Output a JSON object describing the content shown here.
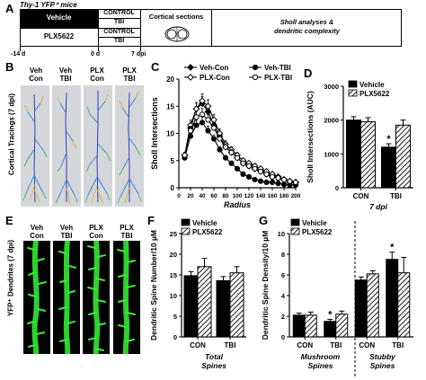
{
  "panel_letters": [
    "A",
    "B",
    "C",
    "D",
    "E",
    "F",
    "G"
  ],
  "panel_a": {
    "mice_label": "Thy-1 YFP⁺ mice",
    "group_vehicle": "Vehicle",
    "group_plx": "PLX5622",
    "cond_control": "CONTROL",
    "cond_tbi": "TBI",
    "step_cortical": "Cortical sections",
    "step_sholl_1": "Sholl analyses &",
    "step_sholl_2": "dendritic complexity",
    "timeline_labels": [
      "-14 d",
      "0 d",
      "7 dpi"
    ],
    "brain_icon": "brain-sections-icon"
  },
  "panel_b": {
    "side_label": "Cortical Tracings (7 dpi)",
    "columns": [
      {
        "line1": "Veh",
        "line2": "Con"
      },
      {
        "line1": "Veh",
        "line2": "TBI"
      },
      {
        "line1": "PLX",
        "line2": "Con"
      },
      {
        "line1": "PLX",
        "line2": "TBI"
      }
    ]
  },
  "panel_e": {
    "side_label": "YFP⁺ Dendrites (7 dpi)",
    "columns": [
      {
        "line1": "Veh",
        "line2": "Con"
      },
      {
        "line1": "Veh",
        "line2": "TBI"
      },
      {
        "line1": "PLX",
        "line2": "Con"
      },
      {
        "line1": "PLX",
        "line2": "TBI"
      }
    ]
  },
  "chart_data": [
    {
      "id": "C",
      "type": "line",
      "xlabel": "Radius",
      "ylabel": "Sholl Intersections",
      "xlim": [
        0,
        200
      ],
      "ylim": [
        0,
        20
      ],
      "xticks": [
        0,
        20,
        40,
        60,
        80,
        100,
        120,
        140,
        160,
        180,
        200
      ],
      "yticks": [
        0,
        5,
        10,
        15,
        20
      ],
      "legend": "top",
      "x": [
        10,
        20,
        30,
        40,
        50,
        60,
        70,
        80,
        90,
        100,
        110,
        120,
        130,
        140,
        150,
        160,
        170,
        180,
        190,
        200
      ],
      "series": [
        {
          "name": "Veh-Con",
          "marker": "filled-diamond",
          "values": [
            6,
            11,
            14.5,
            15.5,
            14,
            11.5,
            9.5,
            7.5,
            6.5,
            5.5,
            4.5,
            4,
            3.5,
            3,
            2.5,
            2,
            2,
            1.5,
            1,
            1
          ]
        },
        {
          "name": "Veh-TBI",
          "marker": "filled-circle",
          "values": [
            5.5,
            9.5,
            11.5,
            12,
            10.5,
            9,
            7,
            5.5,
            4.5,
            3.5,
            2.5,
            2,
            1.5,
            1.2,
            1,
            1,
            0.8,
            0.6,
            0.5,
            0.5
          ]
        },
        {
          "name": "PLX-Con",
          "marker": "open-diamond",
          "values": [
            6,
            11.5,
            14.5,
            16,
            15,
            12.5,
            10,
            8,
            7,
            6,
            5,
            4.5,
            4,
            3.5,
            3,
            2.5,
            2,
            1.5,
            1.2,
            1
          ]
        },
        {
          "name": "PLX-TBI",
          "marker": "open-circle",
          "values": [
            6,
            10.5,
            13,
            13.5,
            12.5,
            11,
            9,
            7.5,
            6.5,
            5.5,
            4.5,
            4,
            3.5,
            3,
            2.5,
            2,
            1.8,
            1.5,
            1.2,
            1
          ]
        }
      ]
    },
    {
      "id": "D",
      "type": "bar",
      "ylabel": "Sholl Intersections (AUC)",
      "xlabel": "7 dpi",
      "categories": [
        "CON",
        "TBI"
      ],
      "ylim": [
        0,
        3000
      ],
      "yticks": [
        0,
        1000,
        2000,
        3000
      ],
      "legend": "top",
      "series": [
        {
          "name": "Vehicle",
          "pattern": "solid",
          "values": [
            2000,
            1200
          ],
          "errors": [
            100,
            100
          ]
        },
        {
          "name": "PLX5622",
          "pattern": "hatched",
          "values": [
            1950,
            1850
          ],
          "errors": [
            120,
            150
          ]
        }
      ],
      "annotations": [
        {
          "category": "TBI",
          "series": "Vehicle",
          "text": "*"
        }
      ]
    },
    {
      "id": "F",
      "type": "bar",
      "ylabel": "Dendritic Spine Number/10 µM",
      "xlabel_lines": [
        "Total",
        "Spines"
      ],
      "categories": [
        "CON",
        "TBI"
      ],
      "ylim": [
        0,
        25
      ],
      "yticks": [
        0,
        5,
        10,
        15,
        20,
        25
      ],
      "legend": "top",
      "series": [
        {
          "name": "Vehicle",
          "pattern": "solid",
          "values": [
            14.8,
            13.6
          ],
          "errors": [
            1,
            1
          ]
        },
        {
          "name": "PLX5622",
          "pattern": "hatched",
          "values": [
            17,
            15.5
          ],
          "errors": [
            2,
            1.5
          ]
        }
      ]
    },
    {
      "id": "G",
      "type": "bar",
      "ylabel": "Dendritic Spine Density/10 µM",
      "categories": [
        "CON",
        "TBI",
        "CON",
        "TBI"
      ],
      "group_labels": [
        [
          "Mushroom",
          "Spines"
        ],
        [
          "Stubby",
          "Spines"
        ]
      ],
      "ylim": [
        0,
        10
      ],
      "yticks": [
        0,
        2,
        4,
        6,
        8,
        10
      ],
      "legend": "top",
      "series": [
        {
          "name": "Vehicle",
          "pattern": "solid",
          "values": [
            2.1,
            1.5,
            5.5,
            7.5
          ],
          "errors": [
            0.2,
            0.2,
            0.3,
            0.7
          ]
        },
        {
          "name": "PLX5622",
          "pattern": "hatched",
          "values": [
            2.1,
            2.2,
            6.1,
            6.2
          ],
          "errors": [
            0.3,
            0.3,
            0.3,
            1.5
          ]
        }
      ],
      "annotations": [
        {
          "category_index": 1,
          "series": "Vehicle",
          "text": "*"
        },
        {
          "category_index": 3,
          "series": "Vehicle",
          "text": "*"
        }
      ]
    }
  ]
}
